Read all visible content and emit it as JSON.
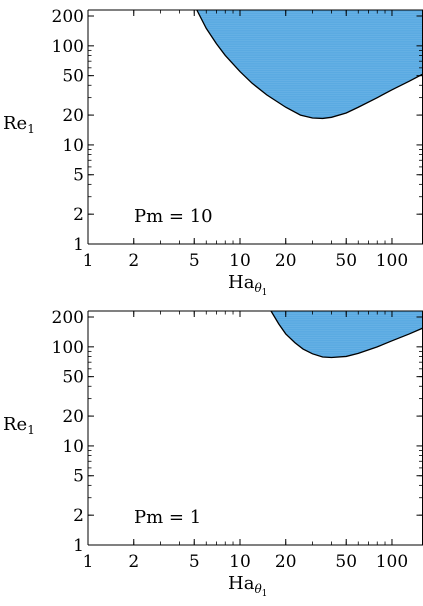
{
  "chart_data": [
    {
      "type": "area",
      "xscale": "log",
      "yscale": "log",
      "xlim": [
        1,
        160
      ],
      "ylim": [
        1,
        230
      ],
      "xticks": [
        1,
        2,
        5,
        10,
        20,
        50,
        100
      ],
      "yticks": [
        1,
        2,
        5,
        10,
        20,
        50,
        100,
        200
      ],
      "xlabel": {
        "main": "Ha",
        "sub": "θ",
        "subsub": "1"
      },
      "ylabel": {
        "main": "Re",
        "sub": "1"
      },
      "annotation": "Pm = 10",
      "fill_color": "#5aaae2",
      "boundary": {
        "x": [
          5.2,
          6,
          7,
          8,
          10,
          12,
          15,
          20,
          25,
          30,
          35,
          40,
          50,
          60,
          80,
          100,
          130,
          160
        ],
        "y": [
          230,
          150,
          105,
          80,
          55,
          42,
          32,
          24,
          20,
          18.7,
          18.5,
          19,
          21,
          24,
          30,
          36,
          44,
          52
        ]
      }
    },
    {
      "type": "area",
      "xscale": "log",
      "yscale": "log",
      "xlim": [
        1,
        160
      ],
      "ylim": [
        1,
        230
      ],
      "xticks": [
        1,
        2,
        5,
        10,
        20,
        50,
        100
      ],
      "yticks": [
        1,
        2,
        5,
        10,
        20,
        50,
        100,
        200
      ],
      "xlabel": {
        "main": "Ha",
        "sub": "θ",
        "subsub": "1"
      },
      "ylabel": {
        "main": "Re",
        "sub": "1"
      },
      "annotation": "Pm = 1",
      "fill_color": "#5aaae2",
      "boundary": {
        "x": [
          16,
          18,
          20,
          23,
          26,
          30,
          35,
          40,
          50,
          60,
          80,
          100,
          130,
          160
        ],
        "y": [
          230,
          170,
          135,
          110,
          95,
          85,
          79,
          78,
          80,
          86,
          100,
          115,
          135,
          155
        ]
      }
    }
  ]
}
